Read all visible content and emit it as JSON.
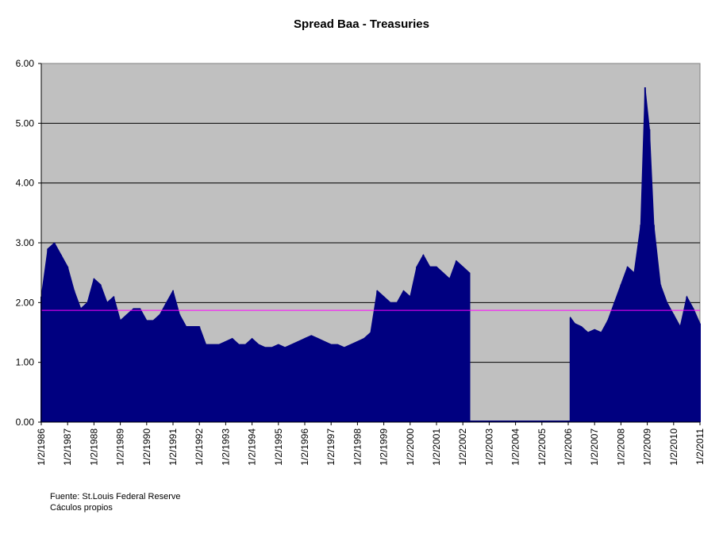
{
  "chart_data": {
    "type": "area",
    "title": "Spread Baa - Treasuries",
    "xlabel": "",
    "ylabel": "",
    "ylim": [
      0,
      6
    ],
    "xlim": [
      "1/2/1986",
      "1/2/2011"
    ],
    "yticks": [
      "0.00",
      "1.00",
      "2.00",
      "3.00",
      "4.00",
      "5.00",
      "6.00"
    ],
    "xticks": [
      "1/2/1986",
      "1/2/1987",
      "1/2/1988",
      "1/2/1989",
      "1/2/1990",
      "1/2/1991",
      "1/2/1992",
      "1/2/1993",
      "1/2/1994",
      "1/2/1995",
      "1/2/1996",
      "1/2/1997",
      "1/2/1998",
      "1/2/1999",
      "1/2/2000",
      "1/2/2001",
      "1/2/2002",
      "1/2/2003",
      "1/2/2004",
      "1/2/2005",
      "1/2/2006",
      "1/2/2007",
      "1/2/2008",
      "1/2/2009",
      "1/2/2010",
      "1/2/2011"
    ],
    "grid": true,
    "plot_background": "#C0C0C0",
    "series_color": "#000080",
    "reference_line": {
      "value": 1.87,
      "color": "#FF00FF"
    },
    "series": [
      {
        "x": [
          "1986-01",
          "1986-04",
          "1986-07",
          "1986-10",
          "1987-01",
          "1987-04",
          "1987-07",
          "1987-10",
          "1988-01",
          "1988-04",
          "1988-07",
          "1988-10",
          "1989-01",
          "1989-04",
          "1989-07",
          "1989-10",
          "1990-01",
          "1990-04",
          "1990-07",
          "1990-10",
          "1991-01",
          "1991-04",
          "1991-07",
          "1991-10",
          "1992-01",
          "1992-04",
          "1992-07",
          "1992-10",
          "1993-01",
          "1993-04",
          "1993-07",
          "1993-10",
          "1994-01",
          "1994-04",
          "1994-07",
          "1994-10",
          "1995-01",
          "1995-04",
          "1995-07",
          "1995-10",
          "1996-01",
          "1996-04",
          "1996-07",
          "1996-10",
          "1997-01",
          "1997-04",
          "1997-07",
          "1997-10",
          "1998-01",
          "1998-04",
          "1998-07",
          "1998-10",
          "1999-01",
          "1999-04",
          "1999-07",
          "1999-10",
          "2000-01",
          "2000-04",
          "2000-07",
          "2000-10",
          "2001-01",
          "2001-04",
          "2001-07",
          "2001-10",
          "2002-01",
          "2002-04",
          "2006-02",
          "2006-04",
          "2006-07",
          "2006-10",
          "2007-01",
          "2007-04",
          "2007-07",
          "2007-10",
          "2008-01",
          "2008-04",
          "2008-07",
          "2008-10",
          "2008-12",
          "2009-02",
          "2009-04",
          "2009-07",
          "2009-10",
          "2010-01",
          "2010-04",
          "2010-07",
          "2010-10",
          "2011-01"
        ],
        "values": [
          2.1,
          2.9,
          3.0,
          2.8,
          2.6,
          2.2,
          1.9,
          2.0,
          2.4,
          2.3,
          2.0,
          2.1,
          1.7,
          1.8,
          1.9,
          1.9,
          1.7,
          1.7,
          1.8,
          2.0,
          2.2,
          1.8,
          1.6,
          1.6,
          1.6,
          1.3,
          1.3,
          1.3,
          1.35,
          1.4,
          1.3,
          1.3,
          1.4,
          1.3,
          1.25,
          1.25,
          1.3,
          1.25,
          1.3,
          1.35,
          1.4,
          1.45,
          1.4,
          1.35,
          1.3,
          1.3,
          1.25,
          1.3,
          1.35,
          1.4,
          1.5,
          2.2,
          2.1,
          2.0,
          2.0,
          2.2,
          2.1,
          2.6,
          2.8,
          2.6,
          2.6,
          2.5,
          2.4,
          2.7,
          2.6,
          2.5,
          1.75,
          1.65,
          1.6,
          1.5,
          1.55,
          1.5,
          1.7,
          2.0,
          2.3,
          2.6,
          2.5,
          3.3,
          5.6,
          4.9,
          3.3,
          2.3,
          2.0,
          1.8,
          1.6,
          2.1,
          1.9,
          1.65
        ]
      }
    ]
  },
  "footnotes": {
    "source": "Fuente: St.Louis Federal Reserve",
    "calc": "Cáculos propios"
  }
}
